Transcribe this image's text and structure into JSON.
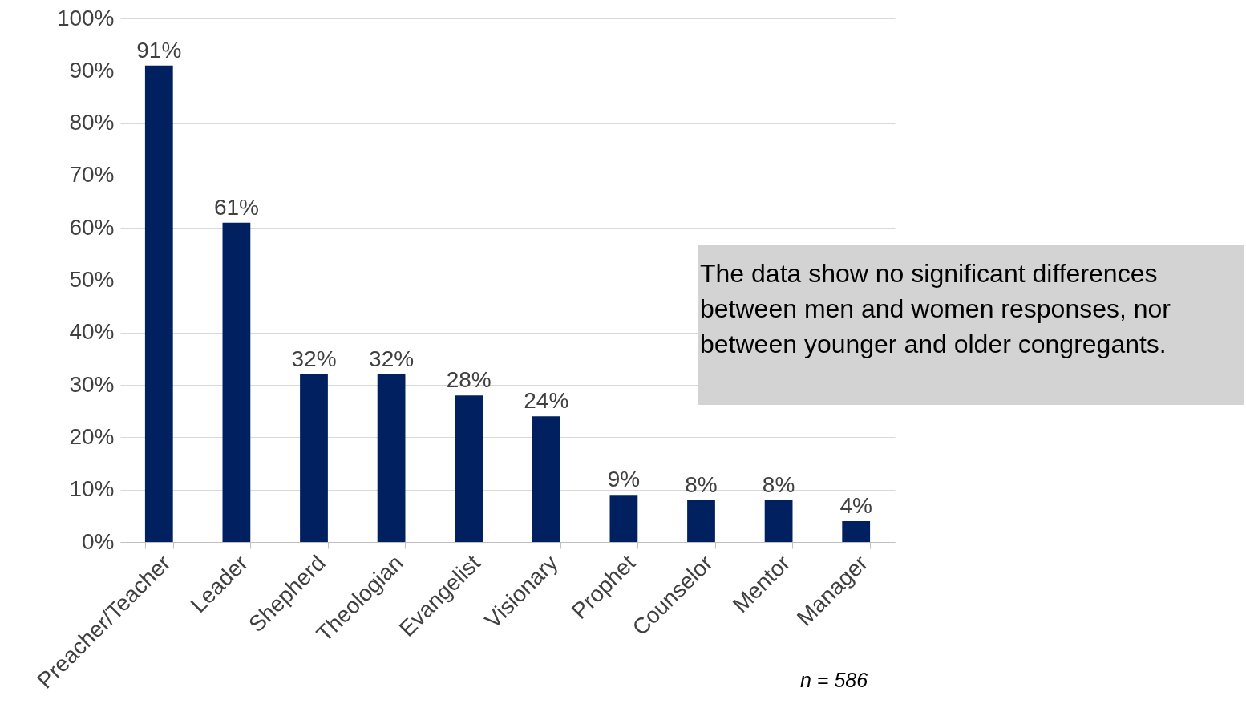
{
  "chart_data": {
    "type": "bar",
    "categories": [
      "Preacher/Teacher",
      "Leader",
      "Shepherd",
      "Theologian",
      "Evangelist",
      "Visionary",
      "Prophet",
      "Counselor",
      "Mentor",
      "Manager"
    ],
    "values": [
      91,
      61,
      32,
      32,
      28,
      24,
      9,
      8,
      8,
      4
    ],
    "value_labels": [
      "91%",
      "61%",
      "32%",
      "32%",
      "28%",
      "24%",
      "9%",
      "8%",
      "8%",
      "4%"
    ],
    "color": "#002060",
    "ylim": [
      0,
      100
    ],
    "yticks": [
      {
        "value": 0,
        "label": "0%"
      },
      {
        "value": 10,
        "label": "10%"
      },
      {
        "value": 20,
        "label": "20%"
      },
      {
        "value": 30,
        "label": "30%"
      },
      {
        "value": 40,
        "label": "40%"
      },
      {
        "value": 50,
        "label": "50%"
      },
      {
        "value": 60,
        "label": "60%"
      },
      {
        "value": 70,
        "label": "70%"
      },
      {
        "value": 80,
        "label": "80%"
      },
      {
        "value": 90,
        "label": "90%"
      },
      {
        "value": 100,
        "label": "100%"
      }
    ],
    "grid": "y",
    "annotations": [
      "The data show no significant differences between men and women responses, nor between younger and older congregants.",
      "n = 586"
    ]
  }
}
